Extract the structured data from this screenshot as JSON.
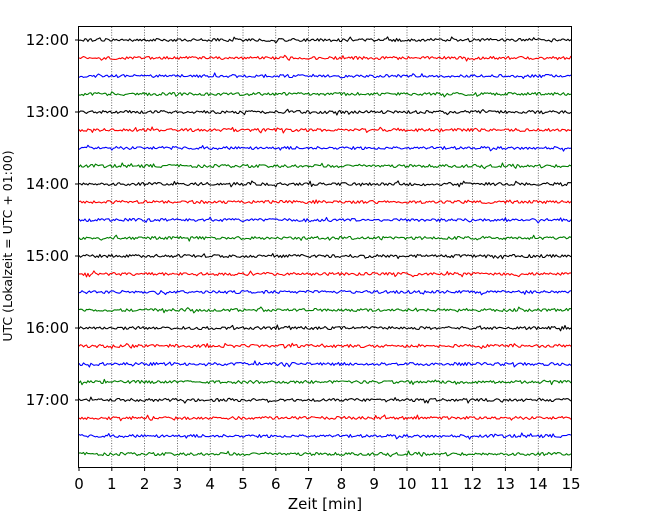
{
  "chart_data": {
    "type": "line",
    "title": "",
    "xlabel": "Zeit  [min]",
    "ylabel": "UTC (Lokalzeit = UTC + 01:00)",
    "xlim": [
      0,
      15
    ],
    "x_ticks": [
      0,
      1,
      2,
      3,
      4,
      5,
      6,
      7,
      8,
      9,
      10,
      11,
      12,
      13,
      14,
      15
    ],
    "y_tick_labels": [
      "12:00",
      "13:00",
      "14:00",
      "15:00",
      "16:00",
      "17:00"
    ],
    "grid": "vertical dotted",
    "trace_interval_min": 15,
    "trace_colors": [
      "#000000",
      "#ff0000",
      "#0000ff",
      "#007f00"
    ],
    "series": [
      {
        "start": "12:00"
      },
      {
        "start": "12:15"
      },
      {
        "start": "12:30"
      },
      {
        "start": "12:45"
      },
      {
        "start": "13:00"
      },
      {
        "start": "13:15"
      },
      {
        "start": "13:30"
      },
      {
        "start": "13:45"
      },
      {
        "start": "14:00"
      },
      {
        "start": "14:15"
      },
      {
        "start": "14:30"
      },
      {
        "start": "14:45"
      },
      {
        "start": "15:00"
      },
      {
        "start": "15:15"
      },
      {
        "start": "15:30"
      },
      {
        "start": "15:45"
      },
      {
        "start": "16:00"
      },
      {
        "start": "16:15"
      },
      {
        "start": "16:30"
      },
      {
        "start": "16:45"
      },
      {
        "start": "17:00"
      },
      {
        "start": "17:15"
      },
      {
        "start": "17:30"
      },
      {
        "start": "17:45"
      }
    ]
  }
}
